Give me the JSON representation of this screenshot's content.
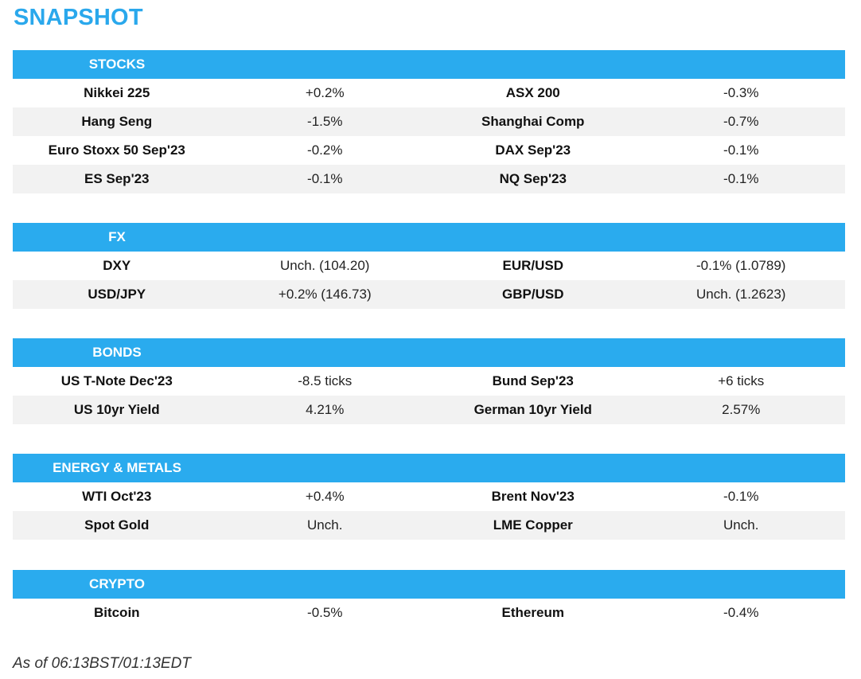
{
  "title": "SNAPSHOT",
  "sections": [
    {
      "header": "STOCKS",
      "rows": [
        [
          "Nikkei 225",
          "+0.2%",
          "ASX 200",
          "-0.3%"
        ],
        [
          "Hang Seng",
          "-1.5%",
          "Shanghai Comp",
          "-0.7%"
        ],
        [
          "Euro Stoxx 50 Sep'23",
          "-0.2%",
          "DAX Sep'23",
          "-0.1%"
        ],
        [
          "ES Sep'23",
          "-0.1%",
          "NQ Sep'23",
          "-0.1%"
        ]
      ]
    },
    {
      "header": "FX",
      "rows": [
        [
          "DXY",
          "Unch. (104.20)",
          "EUR/USD",
          "-0.1% (1.0789)"
        ],
        [
          "USD/JPY",
          "+0.2% (146.73)",
          "GBP/USD",
          "Unch. (1.2623)"
        ]
      ]
    },
    {
      "header": "BONDS",
      "rows": [
        [
          "US T-Note Dec'23",
          "-8.5 ticks",
          "Bund Sep'23",
          "+6 ticks"
        ],
        [
          "US 10yr Yield",
          "4.21%",
          "German 10yr Yield",
          "2.57%"
        ]
      ]
    },
    {
      "header": "ENERGY & METALS",
      "rows": [
        [
          "WTI Oct'23",
          "+0.4%",
          "Brent Nov'23",
          "-0.1%"
        ],
        [
          "Spot Gold",
          "Unch.",
          "LME Copper",
          "Unch."
        ]
      ]
    },
    {
      "header": "CRYPTO",
      "rows": [
        [
          "Bitcoin",
          "-0.5%",
          "Ethereum",
          "-0.4%"
        ]
      ]
    }
  ],
  "footer": "As of 06:13BST/01:13EDT",
  "colors": {
    "accent": "#2aabee",
    "title": "#2aa8ec",
    "row_alt": "#f2f2f2"
  }
}
